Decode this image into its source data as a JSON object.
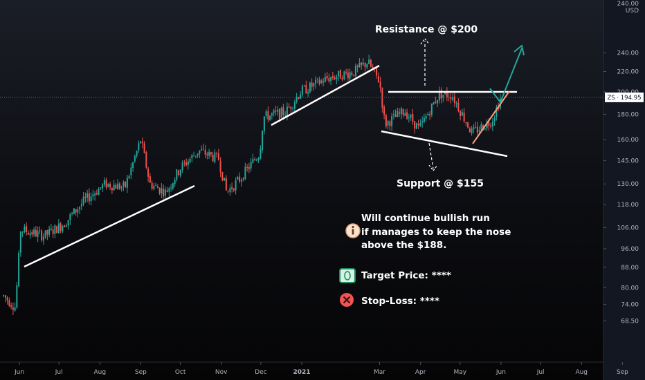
{
  "chart_data": {
    "type": "candlestick",
    "symbol": "ZS",
    "last_price": 194.95,
    "last_price_label": "ZS · 194.95",
    "currency": "USD",
    "y_scale": "log",
    "ylim": [
      66,
      250
    ],
    "y_ticks": [
      "240.00",
      "220.00",
      "200.00",
      "180.00",
      "160.00",
      "145.00",
      "130.00",
      "118.00",
      "106.00",
      "96.00",
      "88.00",
      "80.00",
      "74.00",
      "68.50"
    ],
    "y_ticks_values": [
      240,
      220,
      200,
      180,
      160,
      145,
      130,
      118,
      106,
      96,
      88,
      80,
      74,
      68.5
    ],
    "top_partial_tick": "240.00",
    "x_ticks": [
      "Jun",
      "Jul",
      "Aug",
      "Sep",
      "Oct",
      "Nov",
      "Dec",
      "2021",
      "Mar",
      "Apr",
      "May",
      "Jun",
      "Jul",
      "Aug",
      "Sep"
    ],
    "colors": {
      "up": "#26a69a",
      "down": "#ef5350",
      "trendline": "#ffffff",
      "target_arrow": "#26a69a",
      "rising_support": "#ff9e80"
    },
    "approx_path": [
      {
        "x": "2020-05-20",
        "y": 77
      },
      {
        "x": "2020-05-29",
        "y": 73
      },
      {
        "x": "2020-06-02",
        "y": 105
      },
      {
        "x": "2020-06-20",
        "y": 102
      },
      {
        "x": "2020-07-05",
        "y": 108
      },
      {
        "x": "2020-07-20",
        "y": 120
      },
      {
        "x": "2020-08-05",
        "y": 130
      },
      {
        "x": "2020-08-20",
        "y": 128
      },
      {
        "x": "2020-09-01",
        "y": 160
      },
      {
        "x": "2020-09-08",
        "y": 130
      },
      {
        "x": "2020-09-20",
        "y": 125
      },
      {
        "x": "2020-10-01",
        "y": 140
      },
      {
        "x": "2020-10-15",
        "y": 152
      },
      {
        "x": "2020-10-30",
        "y": 146
      },
      {
        "x": "2020-11-05",
        "y": 125
      },
      {
        "x": "2020-11-15",
        "y": 133
      },
      {
        "x": "2020-11-30",
        "y": 150
      },
      {
        "x": "2020-12-03",
        "y": 178
      },
      {
        "x": "2020-12-20",
        "y": 182
      },
      {
        "x": "2020-12-31",
        "y": 200
      },
      {
        "x": "2021-01-20",
        "y": 213
      },
      {
        "x": "2021-02-10",
        "y": 220
      },
      {
        "x": "2021-02-20",
        "y": 230
      },
      {
        "x": "2021-03-01",
        "y": 210
      },
      {
        "x": "2021-03-05",
        "y": 172
      },
      {
        "x": "2021-03-20",
        "y": 183
      },
      {
        "x": "2021-03-31",
        "y": 168
      },
      {
        "x": "2021-04-15",
        "y": 198
      },
      {
        "x": "2021-04-25",
        "y": 197
      },
      {
        "x": "2021-05-10",
        "y": 165
      },
      {
        "x": "2021-05-25",
        "y": 175
      },
      {
        "x": "2021-06-01",
        "y": 195
      }
    ],
    "annotations": {
      "resistance": "Resistance @ $200",
      "support": "Support @ $155",
      "note_line1": "Will continue bullish run",
      "note_line2": " if manages to keep the nose",
      "note_line3": "above the $188.",
      "target": "Target Price: ****",
      "stop": "Stop-Loss: ****"
    },
    "lines": {
      "resistance_level": 200,
      "current_price_line": 194.95
    }
  }
}
